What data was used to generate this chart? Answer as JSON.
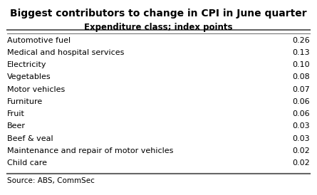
{
  "title": "Biggest contributors to change in CPI in June quarter",
  "subtitle": "Expenditure class; index points",
  "source": "Source: ABS, CommSec",
  "rows": [
    [
      "Automotive fuel",
      "0.26"
    ],
    [
      "Medical and hospital services",
      "0.13"
    ],
    [
      "Electricity",
      "0.10"
    ],
    [
      "Vegetables",
      "0.08"
    ],
    [
      "Motor vehicles",
      "0.07"
    ],
    [
      "Furniture",
      "0.06"
    ],
    [
      "Fruit",
      "0.06"
    ],
    [
      "Beer",
      "0.03"
    ],
    [
      "Beef & veal",
      "0.03"
    ],
    [
      "Maintenance and repair of motor vehicles",
      "0.02"
    ],
    [
      "Child care",
      "0.02"
    ]
  ],
  "title_fontsize": 10.0,
  "subtitle_fontsize": 8.5,
  "row_fontsize": 8.0,
  "source_fontsize": 7.5,
  "bg_color": "#ffffff",
  "title_color": "#000000",
  "subtitle_color": "#000000",
  "row_color": "#000000",
  "source_color": "#000000",
  "line_color": "#666666"
}
